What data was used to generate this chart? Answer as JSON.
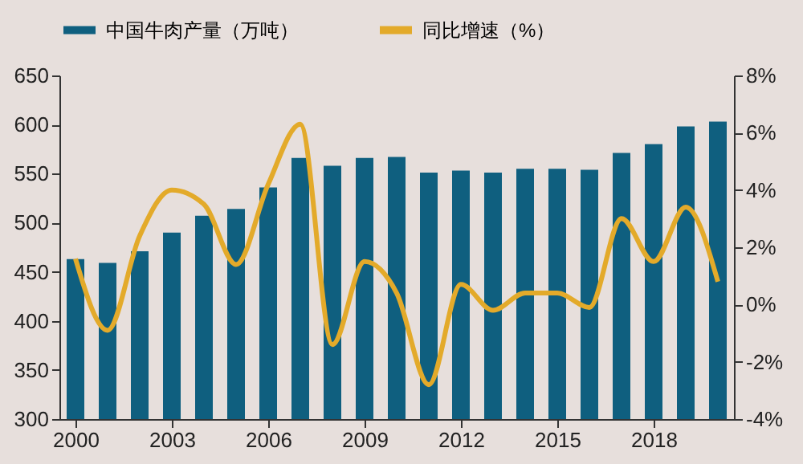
{
  "chart_data": {
    "type": "bar",
    "x": [
      2000,
      2001,
      2002,
      2003,
      2004,
      2005,
      2006,
      2007,
      2008,
      2009,
      2010,
      2011,
      2012,
      2013,
      2014,
      2015,
      2016,
      2017,
      2018,
      2019,
      2020
    ],
    "series": [
      {
        "name": "中国牛肉产量（万吨）",
        "color": "#0f5f7f",
        "values": [
          463,
          459,
          471,
          490,
          507,
          514,
          536,
          566,
          558,
          566,
          567,
          551,
          553,
          551,
          555,
          555,
          554,
          571,
          580,
          598,
          603
        ]
      },
      {
        "name": "同比增速（%）",
        "type": "line",
        "axis": "y2",
        "color": "#e3aa2a",
        "values": [
          1.6,
          -0.9,
          2.4,
          4.0,
          3.5,
          1.4,
          4.2,
          6.3,
          -1.4,
          1.5,
          0.4,
          -2.8,
          0.7,
          -0.2,
          0.4,
          0.4,
          -0.1,
          3.0,
          1.5,
          3.4,
          0.8
        ]
      }
    ],
    "xlim": [
      1999.5,
      2020.5
    ],
    "xticks": [
      2000,
      2003,
      2006,
      2009,
      2012,
      2015,
      2018
    ],
    "ylim": [
      300,
      650
    ],
    "yticks": [
      300,
      350,
      400,
      450,
      500,
      550,
      600,
      650
    ],
    "y2lim": [
      -4,
      8
    ],
    "y2ticks": [
      {
        "value": -4,
        "label": "-4%"
      },
      {
        "value": -2,
        "label": "-2%"
      },
      {
        "value": 0,
        "label": "0%"
      },
      {
        "value": 2,
        "label": "2%"
      },
      {
        "value": 4,
        "label": "4%"
      },
      {
        "value": 6,
        "label": "6%"
      },
      {
        "value": 8,
        "label": "8%"
      }
    ],
    "legend": "top",
    "grid": false,
    "marker": "none",
    "line_style": "solid"
  }
}
